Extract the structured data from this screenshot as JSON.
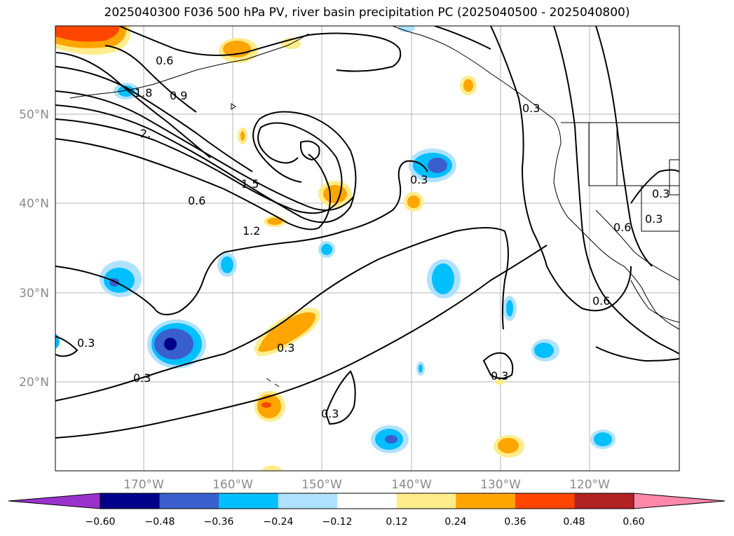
{
  "title": "2025040300 F036 500 hPa PV, river basin precipitation PC (2025040500 - 2025040800)",
  "map": {
    "lat_ticks": [
      "50°N",
      "40°N",
      "30°N",
      "20°N"
    ],
    "lon_ticks": [
      "170°W",
      "160°W",
      "150°W",
      "140°W",
      "130°W",
      "120°W"
    ]
  },
  "contour_labels": [
    "0.6",
    "0.9",
    "1.8",
    "2.",
    "1.5",
    "0.6",
    "1.2",
    "0.3",
    "0.3",
    "0.3",
    "0.3",
    "0.3",
    "0.3",
    "0.3",
    "0.6",
    "0.6",
    "0.3",
    "0.3"
  ],
  "colorbar": {
    "ticks": [
      "−0.60",
      "−0.48",
      "−0.36",
      "−0.24",
      "−0.12",
      "0.12",
      "0.24",
      "0.36",
      "0.48",
      "0.60"
    ],
    "colors": [
      "#9932cc",
      "#00008b",
      "#3a5fcd",
      "#00bfff",
      "#b0e2ff",
      "#ffffff",
      "#ffec8b",
      "#ffa500",
      "#ff4500",
      "#b22222",
      "#ff88aa"
    ]
  }
}
